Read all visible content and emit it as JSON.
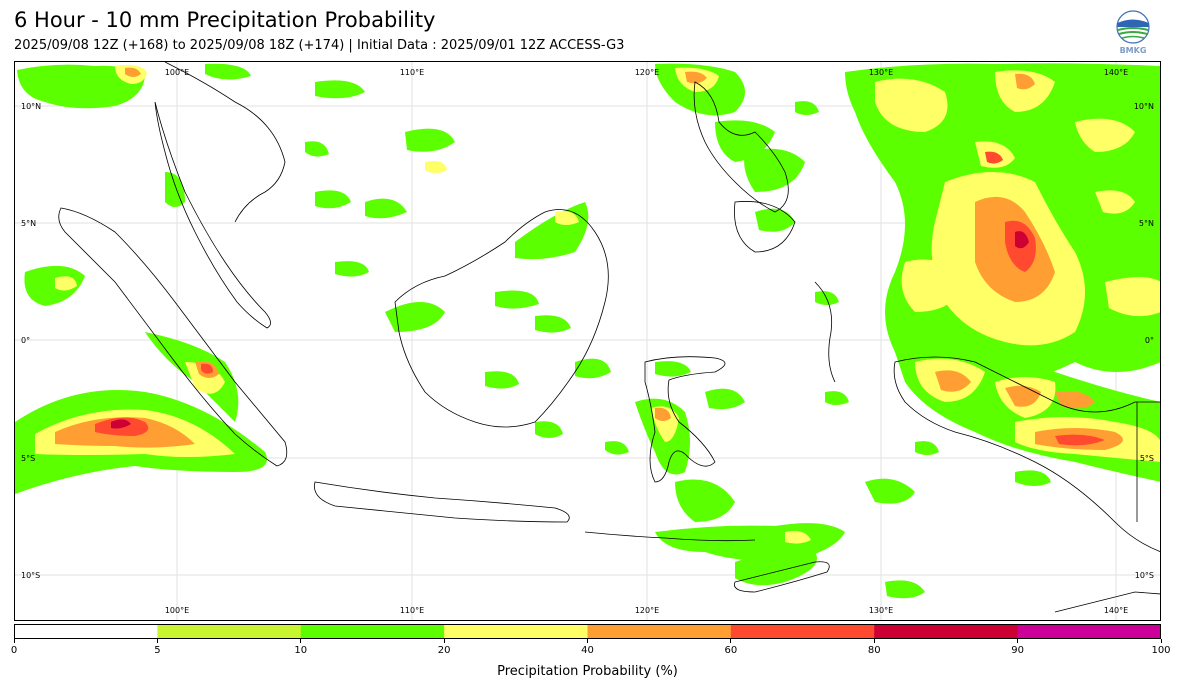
{
  "title": "6 Hour - 10 mm Precipitation Probability",
  "subtitle": "2025/09/08 12Z (+168) to 2025/09/08 18Z (+174) | Initial Data : 2025/09/01 12Z ACCESS-G3",
  "logo": {
    "text": "BMKG",
    "icon": "bmkg-logo-icon"
  },
  "map": {
    "lon_labels": [
      "100°E",
      "110°E",
      "120°E",
      "130°E",
      "140°E"
    ],
    "lat_labels": [
      "10°N",
      "5°N",
      "0°",
      "5°S",
      "10°S"
    ],
    "extent": {
      "lon": [
        93.5,
        142.5
      ],
      "lat": [
        -11.5,
        12.5
      ]
    }
  },
  "colorbar": {
    "label": "Precipitation Probability (%)",
    "ticks": [
      "0",
      "5",
      "10",
      "20",
      "40",
      "60",
      "80",
      "90",
      "100"
    ],
    "colors": [
      "#ffffff",
      "#c8f52f",
      "#5cff00",
      "#ffff66",
      "#ff9f33",
      "#ff4a2f",
      "#cc0033",
      "#cc0099"
    ]
  },
  "chart_data": {
    "type": "heatmap",
    "title": "6 Hour - 10 mm Precipitation Probability",
    "subtitle": "2025/09/08 12Z (+168) to 2025/09/08 18Z (+174) | Initial Data : 2025/09/01 12Z ACCESS-G3",
    "colorbar_label": "Precipitation Probability (%)",
    "levels": [
      0,
      5,
      10,
      20,
      40,
      60,
      80,
      90,
      100
    ],
    "xlim": [
      93.5,
      142.5
    ],
    "ylim": [
      -11.5,
      12.5
    ],
    "regions": [
      {
        "lon": 97.5,
        "lat": 11.5,
        "level": 60
      },
      {
        "lon": 96,
        "lat": 10.5,
        "level": 10
      },
      {
        "lon": 97.5,
        "lat": -3.5,
        "level": 80
      },
      {
        "lon": 96,
        "lat": -4,
        "level": 40
      },
      {
        "lon": 101.5,
        "lat": -1.2,
        "level": 60
      },
      {
        "lon": 100.5,
        "lat": -0.5,
        "level": 20
      },
      {
        "lon": 107.5,
        "lat": 7.5,
        "level": 10
      },
      {
        "lon": 112,
        "lat": 2,
        "level": 10
      },
      {
        "lon": 113.5,
        "lat": 4.5,
        "level": 10
      },
      {
        "lon": 121.5,
        "lat": 10.8,
        "level": 20
      },
      {
        "lon": 125,
        "lat": 8,
        "level": 10
      },
      {
        "lon": 121.5,
        "lat": -4,
        "level": 40
      },
      {
        "lon": 122,
        "lat": -6.5,
        "level": 10
      },
      {
        "lon": 127,
        "lat": -8.8,
        "level": 10
      },
      {
        "lon": 134.5,
        "lat": 7.5,
        "level": 60
      },
      {
        "lon": 136,
        "lat": 4,
        "level": 80
      },
      {
        "lon": 134,
        "lat": 1.5,
        "level": 40
      },
      {
        "lon": 132,
        "lat": -2,
        "level": 60
      },
      {
        "lon": 138.5,
        "lat": -4,
        "level": 60
      },
      {
        "lon": 140.5,
        "lat": -4.5,
        "level": 20
      },
      {
        "lon": 133,
        "lat": 11.5,
        "level": 20
      }
    ]
  }
}
